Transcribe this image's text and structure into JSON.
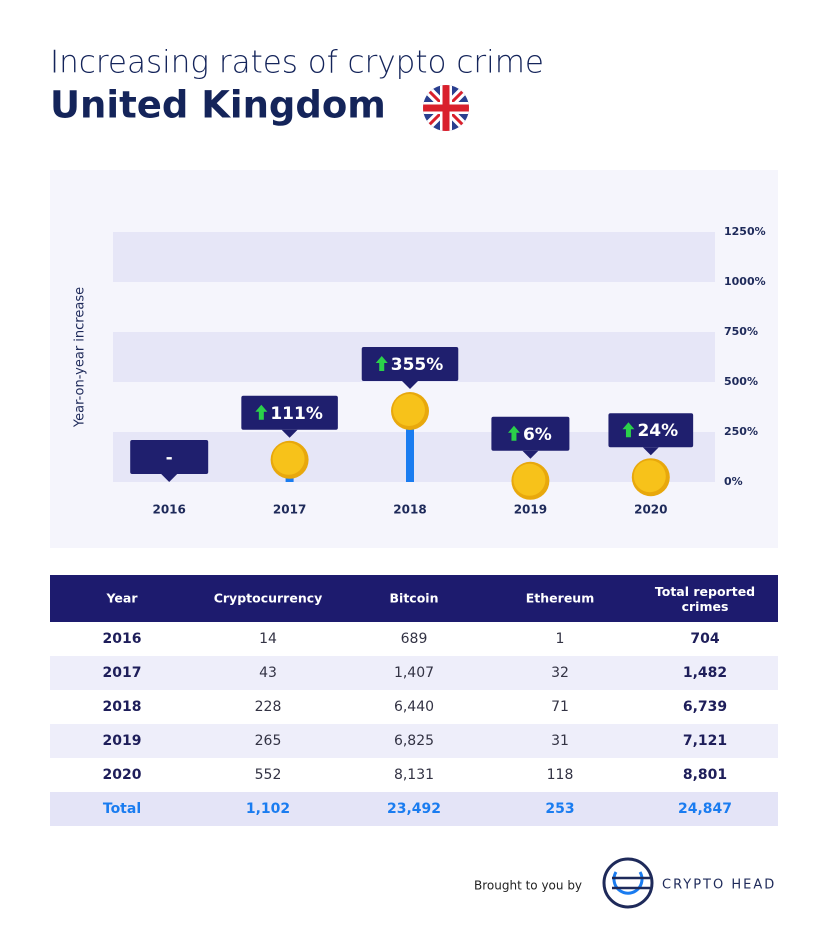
{
  "header": {
    "title": "Increasing rates of crypto crime",
    "subtitle": "United Kingdom"
  },
  "chart_data": {
    "type": "lollipop",
    "y_label": "Year-on-year increase",
    "categories": [
      "2016",
      "2017",
      "2018",
      "2019",
      "2020"
    ],
    "values": [
      null,
      111,
      355,
      6,
      24
    ],
    "value_labels": [
      "-",
      "111%",
      "355%",
      "6%",
      "24%"
    ],
    "color": "#1a7cf0",
    "marker_color": "#f7c21a",
    "label_box_color": "#1f1f6e",
    "up_arrow_color": "#2bd14a",
    "ylim": [
      0,
      1250
    ],
    "yticks": [
      {
        "value": 0,
        "label": "0%"
      },
      {
        "value": 250,
        "label": "250%"
      },
      {
        "value": 500,
        "label": "500%"
      },
      {
        "value": 750,
        "label": "750%"
      },
      {
        "value": 1000,
        "label": "1000%"
      },
      {
        "value": 1250,
        "label": "1250%"
      }
    ],
    "grid": "bands",
    "band_color": "#e6e6f7"
  },
  "table": {
    "columns": [
      "Year",
      "Cryptocurrency",
      "Bitcoin",
      "Ethereum",
      "Total reported crimes"
    ],
    "rows": [
      [
        "2016",
        "14",
        "689",
        "1",
        "704"
      ],
      [
        "2017",
        "43",
        "1,407",
        "32",
        "1,482"
      ],
      [
        "2018",
        "228",
        "6,440",
        "71",
        "6,739"
      ],
      [
        "2019",
        "265",
        "6,825",
        "31",
        "7,121"
      ],
      [
        "2020",
        "552",
        "8,131",
        "118",
        "8,801"
      ]
    ],
    "total": [
      "Total",
      "1,102",
      "23,492",
      "253",
      "24,847"
    ]
  },
  "footer": {
    "credit": "Brought to you by",
    "brand": "CRYPTO HEAD"
  }
}
